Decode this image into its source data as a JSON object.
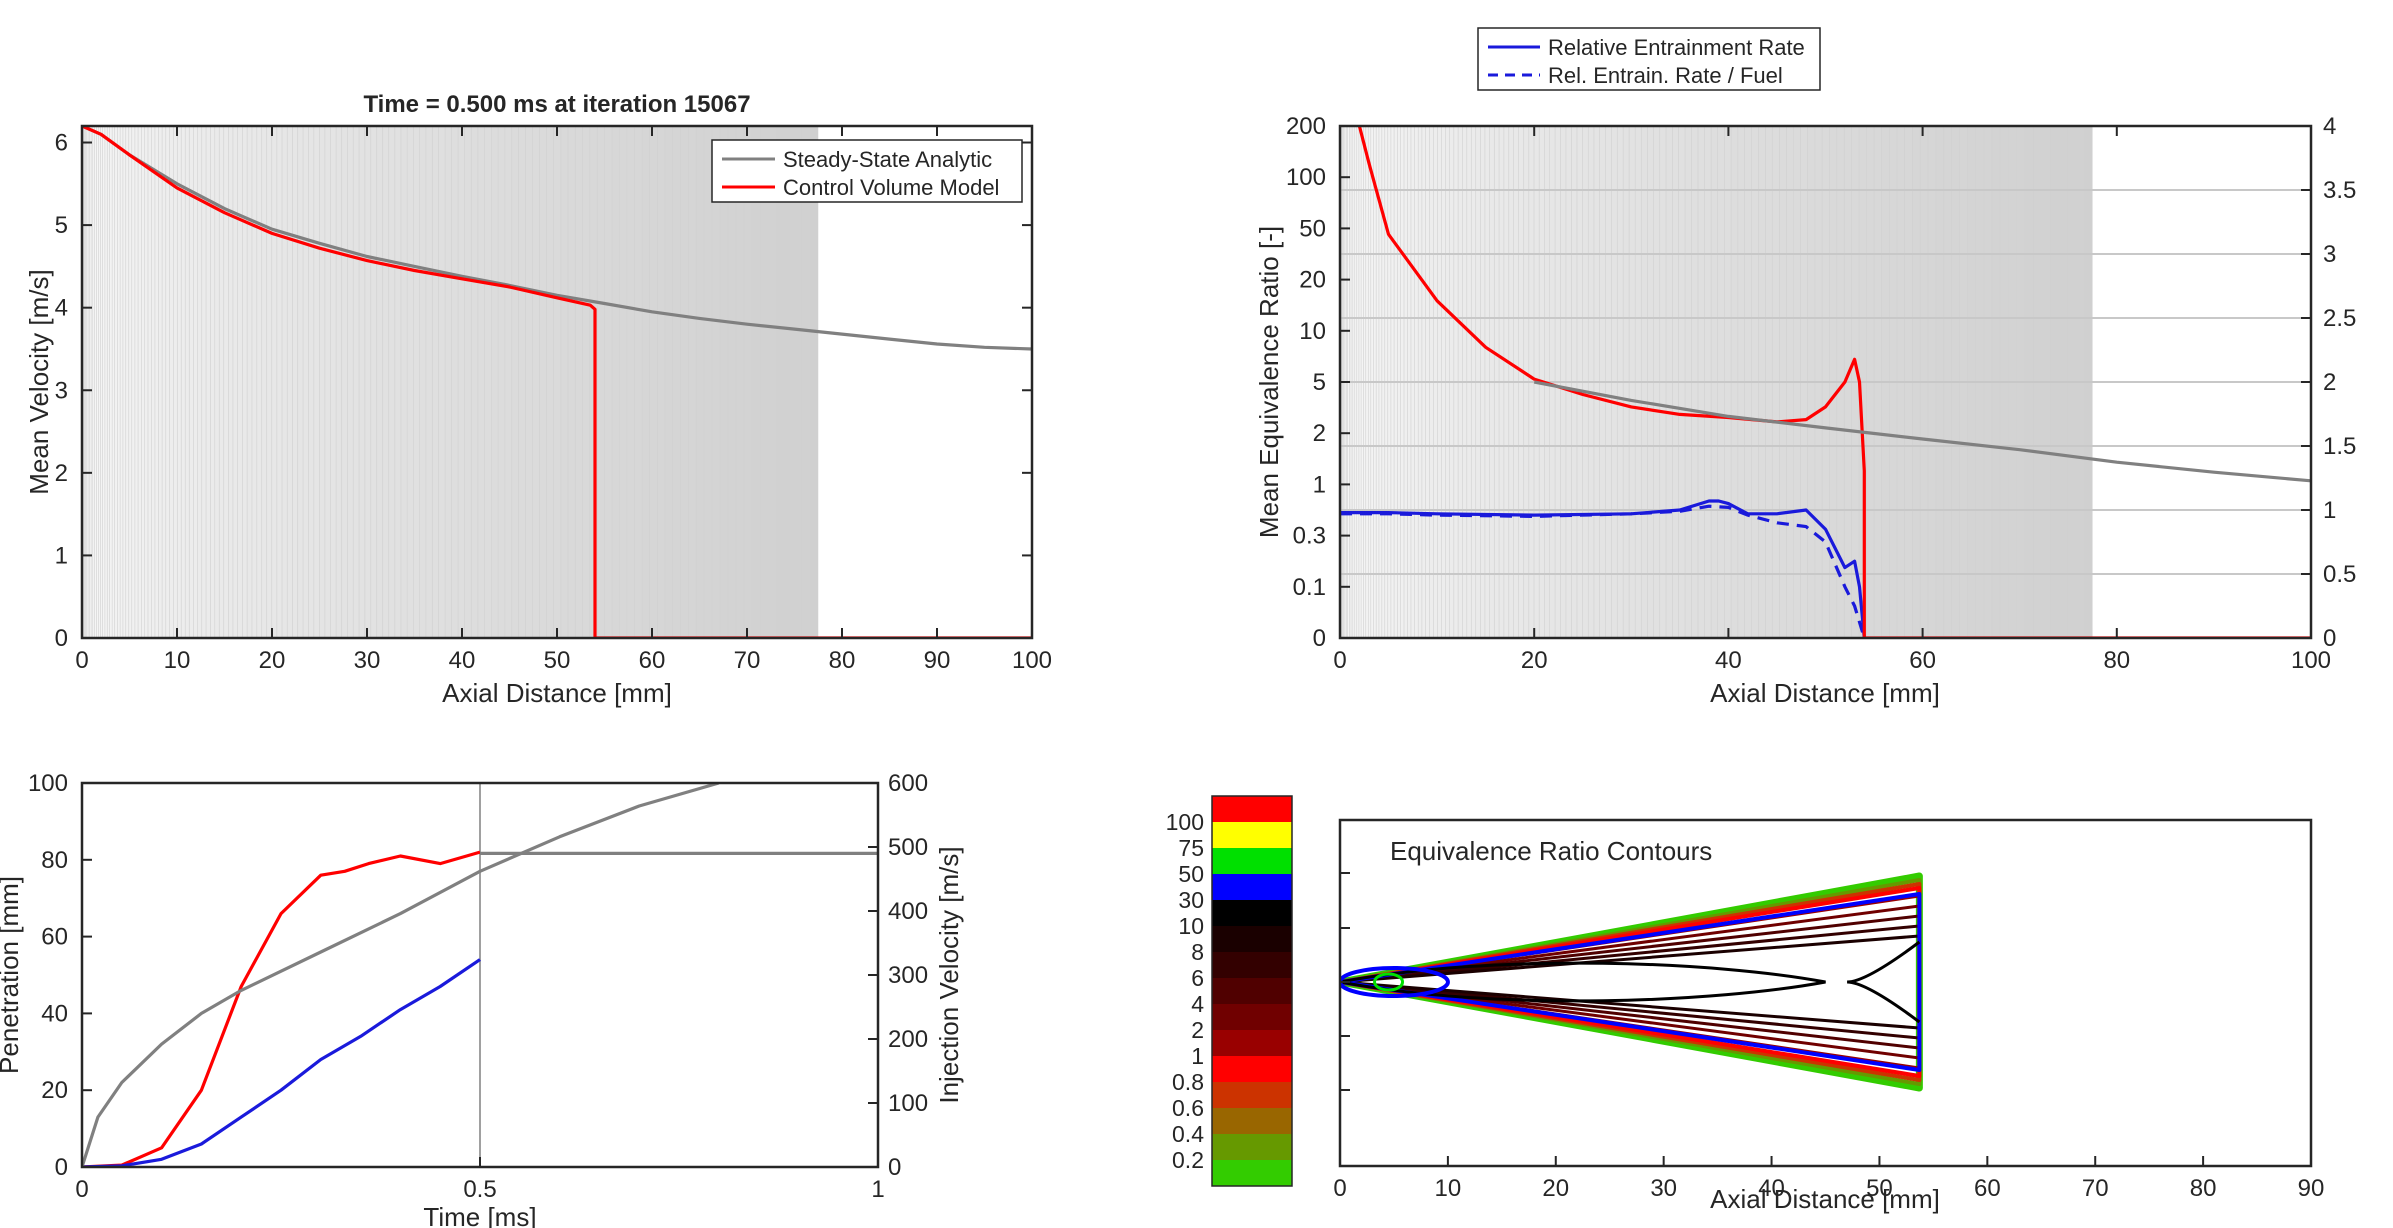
{
  "chart_data": [
    {
      "id": "velocity",
      "type": "line",
      "title": "Time = 0.500 ms at iteration 15067",
      "xlabel": "Axial Distance [mm]",
      "ylabel": "Mean Velocity [m/s]",
      "xlim": [
        0,
        100
      ],
      "ylim": [
        0,
        6.2
      ],
      "xticks": [
        "0",
        "10",
        "20",
        "30",
        "40",
        "50",
        "60",
        "70",
        "80",
        "90",
        "100"
      ],
      "yticks": [
        "0",
        "1",
        "2",
        "3",
        "4",
        "5",
        "6"
      ],
      "grid": false,
      "legend": "top-right",
      "series": [
        {
          "name": "Steady-State Analytic",
          "color": "#808080",
          "x": [
            0,
            2,
            5,
            10,
            15,
            20,
            25,
            30,
            35,
            40,
            45,
            50,
            55,
            60,
            65,
            70,
            75,
            80,
            85,
            90,
            95,
            100
          ],
          "y": [
            6.2,
            6.1,
            5.85,
            5.5,
            5.2,
            4.95,
            4.78,
            4.62,
            4.5,
            4.38,
            4.27,
            4.15,
            4.05,
            3.95,
            3.87,
            3.8,
            3.74,
            3.68,
            3.62,
            3.56,
            3.52,
            3.5
          ]
        },
        {
          "name": "Control Volume Model",
          "color": "#ff0000",
          "x": [
            0,
            2,
            5,
            10,
            15,
            20,
            25,
            30,
            35,
            40,
            45,
            50,
            53.5,
            54,
            54,
            60,
            70,
            80,
            90,
            100
          ],
          "y": [
            6.2,
            6.1,
            5.85,
            5.45,
            5.15,
            4.9,
            4.72,
            4.57,
            4.45,
            4.35,
            4.25,
            4.12,
            4.03,
            3.98,
            0,
            0,
            0,
            0,
            0,
            0
          ]
        }
      ]
    },
    {
      "id": "equivalence",
      "type": "line",
      "xlabel": "Axial Distance [mm]",
      "ylabel": "Mean Equivalence Ratio [-]",
      "xlim": [
        0,
        100
      ],
      "yticks_left": [
        "0",
        "0.1",
        "0.3",
        "1",
        "2",
        "5",
        "10",
        "20",
        "50",
        "100",
        "200"
      ],
      "yticks_right": [
        "0",
        "0.5",
        "1",
        "1.5",
        "2",
        "2.5",
        "3",
        "3.5",
        "4"
      ],
      "xticks": [
        "0",
        "20",
        "40",
        "60",
        "80",
        "100"
      ],
      "legend": "top-center-outside",
      "series": [
        {
          "name": "Relative Entrainment Rate",
          "color": "#1a1adb",
          "axis": "right",
          "x": [
            0,
            5,
            10,
            20,
            30,
            35,
            38,
            39,
            40,
            42,
            45,
            48,
            50,
            52,
            53,
            53.5,
            54
          ],
          "y": [
            0.98,
            0.98,
            0.97,
            0.96,
            0.97,
            1.0,
            1.07,
            1.07,
            1.05,
            0.97,
            0.97,
            1.0,
            0.85,
            0.55,
            0.6,
            0.4,
            0
          ]
        },
        {
          "name": "Rel. Entrain. Rate / Fuel",
          "color": "#1a1adb",
          "axis": "right",
          "dash": true,
          "x": [
            0,
            5,
            10,
            20,
            30,
            35,
            38,
            40,
            42,
            45,
            48,
            50,
            52,
            53,
            54
          ],
          "y": [
            0.97,
            0.97,
            0.96,
            0.95,
            0.97,
            0.99,
            1.03,
            1.02,
            0.96,
            0.9,
            0.87,
            0.75,
            0.4,
            0.25,
            0
          ]
        },
        {
          "name": "",
          "color": "#ff0000",
          "axis": "left",
          "x": [
            2,
            3,
            5,
            10,
            15,
            20,
            25,
            30,
            35,
            40,
            45,
            48,
            50,
            52,
            53,
            53.5,
            54,
            54,
            100
          ],
          "y": [
            200,
            120,
            45,
            15,
            8,
            5.2,
            4,
            3.2,
            2.8,
            2.65,
            2.45,
            2.55,
            3.2,
            5,
            6.8,
            5,
            1.2,
            0,
            0
          ]
        },
        {
          "name": "",
          "color": "#808080",
          "axis": "left",
          "x": [
            20,
            30,
            40,
            50,
            60,
            70,
            80,
            90,
            100
          ],
          "y": [
            5.0,
            3.6,
            2.7,
            2.2,
            1.85,
            1.6,
            1.35,
            1.18,
            1.05
          ]
        }
      ]
    },
    {
      "id": "penetration",
      "type": "line",
      "xlabel": "Time [ms]",
      "ylabel": "Penetration [mm]",
      "ylabel_right": "Injection Velocity [m/s]",
      "xlim": [
        0,
        1
      ],
      "ylim": [
        0,
        100
      ],
      "ylim_right": [
        0,
        600
      ],
      "xticks": [
        "0",
        "0.5",
        "1"
      ],
      "yticks_left": [
        "0",
        "20",
        "40",
        "60",
        "80",
        "100"
      ],
      "yticks_right": [
        "0",
        "100",
        "200",
        "300",
        "400",
        "500",
        "600"
      ],
      "series": [
        {
          "color": "#ff0000",
          "axis": "left",
          "x": [
            0,
            0.05,
            0.1,
            0.15,
            0.2,
            0.25,
            0.3,
            0.33,
            0.36,
            0.4,
            0.45,
            0.5
          ],
          "y": [
            0,
            0.5,
            5,
            20,
            47,
            66,
            76,
            77,
            79,
            81,
            79,
            82
          ]
        },
        {
          "color": "#1a1adb",
          "axis": "left",
          "x": [
            0,
            0.05,
            0.1,
            0.15,
            0.2,
            0.25,
            0.3,
            0.35,
            0.4,
            0.45,
            0.5
          ],
          "y": [
            0,
            0.3,
            2,
            6,
            13,
            20,
            28,
            34,
            41,
            47,
            54
          ]
        },
        {
          "color": "#808080",
          "axis": "left",
          "x": [
            0,
            0.02,
            0.05,
            0.1,
            0.15,
            0.2,
            0.3,
            0.4,
            0.5,
            0.6,
            0.7,
            0.8
          ],
          "y": [
            0,
            13,
            22,
            32,
            40,
            46,
            56,
            66,
            77,
            86,
            94,
            100
          ]
        },
        {
          "color": "#808080",
          "axis": "right",
          "x": [
            0.5,
            1.0
          ],
          "y": [
            490,
            490
          ]
        }
      ],
      "marker_time": 0.5
    },
    {
      "id": "contours",
      "type": "contour",
      "title": "Equivalence Ratio Contours",
      "xlabel": "Axial Distance [mm]",
      "xlim": [
        0,
        90
      ],
      "xticks": [
        "0",
        "10",
        "20",
        "30",
        "40",
        "50",
        "60",
        "70",
        "80",
        "90"
      ],
      "colorbar": {
        "levels": [
          "100",
          "75",
          "50",
          "30",
          "10",
          "8",
          "6",
          "4",
          "2",
          "1",
          "0.8",
          "0.6",
          "0.4",
          "0.2"
        ],
        "colors": [
          "#ff0000",
          "#ffff00",
          "#00e000",
          "#0000ff",
          "#000000",
          "#1a0000",
          "#330000",
          "#500000",
          "#700000",
          "#990000",
          "#ff0000",
          "#cc3300",
          "#996600",
          "#669900",
          "#33cc00"
        ]
      }
    }
  ]
}
